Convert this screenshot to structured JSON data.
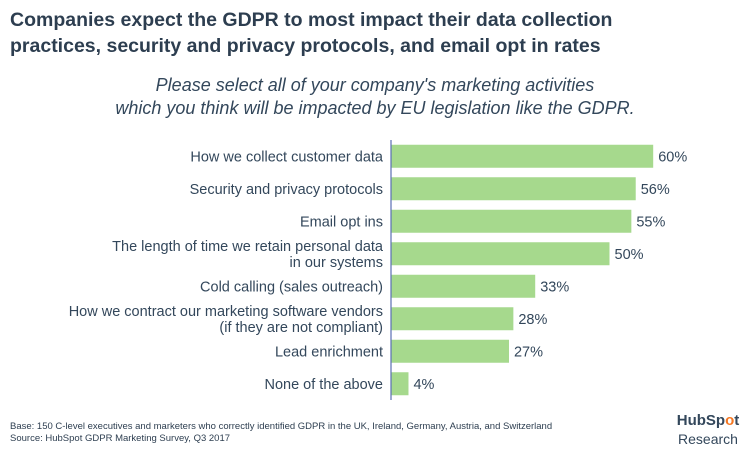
{
  "title_line1": "Companies expect the GDPR to most impact their data collection",
  "title_line2": "practices, security and privacy protocols, and email opt in rates",
  "subtitle_line1": "Please select all of your company's marketing activities",
  "subtitle_line2": "which you think will be impacted by EU legislation like the GDPR.",
  "footnote": {
    "base": "Base: 150 C-level executives and marketers who correctly identified GDPR in the UK, Ireland, Germany, Austria, and Switzerland",
    "source": "Source: HubSpot GDPR Marketing Survey, Q3 2017"
  },
  "logo": {
    "name_a": "HubSp",
    "name_b": "o",
    "name_c": "t",
    "sub": "Research"
  },
  "colors": {
    "bar": "#a6d98d",
    "axis": "#5b6fb3",
    "text": "#33475b"
  },
  "chart_data": {
    "type": "bar",
    "orientation": "horizontal",
    "title": "Companies expect the GDPR to most impact their data collection practices, security and privacy protocols, and email opt in rates",
    "subtitle": "Please select all of your company's marketing activities which you think will be impacted by EU legislation like the GDPR.",
    "categories": [
      [
        "How we collect customer data"
      ],
      [
        "Security and privacy protocols"
      ],
      [
        "Email opt ins"
      ],
      [
        "The length of time we retain personal data",
        "in our systems"
      ],
      [
        "Cold calling (sales outreach)"
      ],
      [
        "How we contract our marketing software vendors",
        "(if they are not compliant)"
      ],
      [
        "Lead enrichment"
      ],
      [
        "None of the above"
      ]
    ],
    "values": [
      60,
      56,
      55,
      50,
      33,
      28,
      27,
      4
    ],
    "value_labels": [
      "60%",
      "56%",
      "55%",
      "50%",
      "33%",
      "28%",
      "27%",
      "4%"
    ],
    "unit": "%",
    "xlim": [
      0,
      60
    ],
    "grid": false,
    "legend": "none"
  }
}
